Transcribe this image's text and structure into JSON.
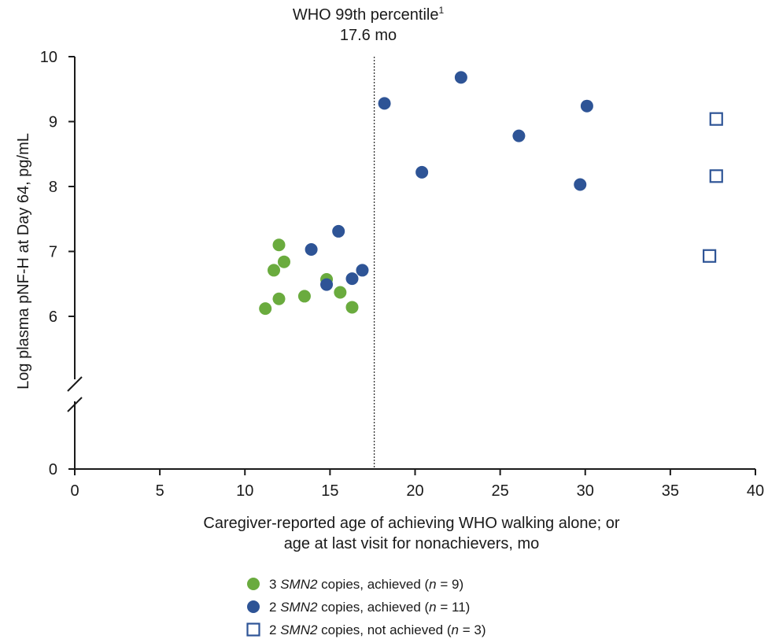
{
  "chart_data": {
    "type": "scatter",
    "annotation": {
      "line1": "WHO 99th percentile",
      "line1_sup": "1",
      "line2": "17.6 mo",
      "x": 17.6
    },
    "xlabel_line1": "Caregiver-reported age of achieving WHO walking alone; or",
    "xlabel_line2": "age at last visit for nonachievers, mo",
    "ylabel": "Log plasma pNF-H at Day 64, pg/mL",
    "xlim": [
      0,
      40
    ],
    "ylim": [
      0,
      10
    ],
    "y_axis_break": [
      0,
      5
    ],
    "x_ticks": [
      "0",
      "5",
      "10",
      "15",
      "20",
      "25",
      "30",
      "35",
      "40"
    ],
    "y_ticks": [
      "0",
      "6",
      "7",
      "8",
      "9",
      "10"
    ],
    "grid": false,
    "legend_position": "bottom-center",
    "series": [
      {
        "name": "3 SMN2 copies, achieved (n = 9)",
        "legend_parts": [
          {
            "t": "3 ",
            "i": false
          },
          {
            "t": "SMN2",
            "i": true
          },
          {
            "t": " copies, achieved (",
            "i": false
          },
          {
            "t": "n",
            "i": true
          },
          {
            "t": " = 9)",
            "i": false
          }
        ],
        "color": "#6aab3e",
        "marker": "circle-filled",
        "points": [
          [
            11.2,
            6.12
          ],
          [
            11.7,
            6.71
          ],
          [
            12.0,
            7.1
          ],
          [
            12.0,
            6.27
          ],
          [
            12.3,
            6.84
          ],
          [
            13.5,
            6.31
          ],
          [
            14.8,
            6.57
          ],
          [
            15.6,
            6.37
          ],
          [
            16.3,
            6.14
          ]
        ]
      },
      {
        "name": "2 SMN2 copies, achieved (n = 11)",
        "legend_parts": [
          {
            "t": "2 ",
            "i": false
          },
          {
            "t": "SMN2",
            "i": true
          },
          {
            "t": " copies, achieved (",
            "i": false
          },
          {
            "t": "n",
            "i": true
          },
          {
            "t": " = 11)",
            "i": false
          }
        ],
        "color": "#2e5496",
        "marker": "circle-filled",
        "points": [
          [
            13.9,
            7.03
          ],
          [
            14.8,
            6.49
          ],
          [
            15.5,
            7.31
          ],
          [
            16.3,
            6.58
          ],
          [
            16.9,
            6.71
          ],
          [
            18.2,
            9.28
          ],
          [
            20.4,
            8.22
          ],
          [
            22.7,
            9.68
          ],
          [
            26.1,
            8.78
          ],
          [
            29.7,
            8.03
          ],
          [
            30.1,
            9.24
          ]
        ]
      },
      {
        "name": "2 SMN2 copies, not achieved (n = 3)",
        "legend_parts": [
          {
            "t": "2 ",
            "i": false
          },
          {
            "t": "SMN2",
            "i": true
          },
          {
            "t": " copies, not achieved (",
            "i": false
          },
          {
            "t": "n",
            "i": true
          },
          {
            "t": " = 3)",
            "i": false
          }
        ],
        "color": "#2e5496",
        "marker": "square-open",
        "points": [
          [
            37.3,
            6.93
          ],
          [
            37.7,
            9.04
          ],
          [
            37.7,
            8.16
          ]
        ]
      }
    ]
  }
}
